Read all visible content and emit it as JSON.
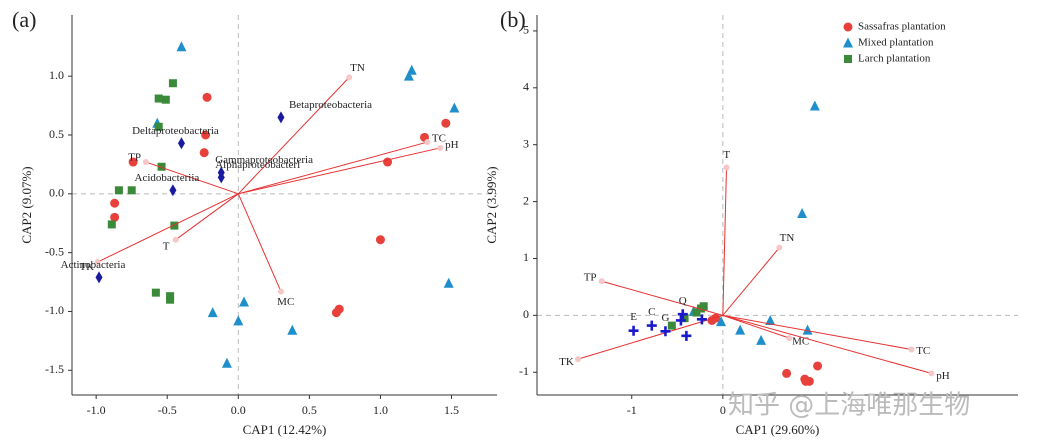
{
  "watermark": "知乎 @上海唯那生物",
  "chart_data": [
    {
      "type": "biplot",
      "panel_label": "(a)",
      "xlabel": "CAP1 (12.42%)",
      "ylabel": "CAP2 (9.07%)",
      "xlim": [
        -1.17,
        1.82
      ],
      "ylim": [
        -1.71,
        1.52
      ],
      "xticks": [
        {
          "value": -1,
          "label": "-1.0"
        },
        -0.5,
        {
          "value": 0,
          "label": "0.0"
        },
        0.5,
        {
          "value": 1,
          "label": "1.0"
        },
        1.5
      ],
      "yticks": [
        -1.5,
        {
          "value": -1,
          "label": "-1.0"
        },
        -0.5,
        {
          "value": 0,
          "label": "0.0"
        },
        0.5,
        {
          "value": 1,
          "label": "1.0"
        }
      ],
      "series": [
        {
          "color": "#e8403a",
          "marker": "circle",
          "x": [
            -0.22,
            -0.23,
            -0.24,
            -0.74,
            -0.87,
            -0.87,
            1.46,
            1.31,
            1.05,
            1.0,
            0.71,
            0.69
          ],
          "y": [
            0.82,
            0.5,
            0.35,
            0.27,
            -0.08,
            -0.2,
            0.6,
            0.48,
            0.27,
            -0.39,
            -0.98,
            -1.01
          ]
        },
        {
          "color": "#1f8fcc",
          "marker": "triangle",
          "x": [
            -0.4,
            -0.57,
            1.22,
            1.2,
            1.52,
            1.48,
            0.04,
            0.38,
            -0.18,
            0.0,
            -0.08
          ],
          "y": [
            1.25,
            0.6,
            1.05,
            1.0,
            0.73,
            -0.76,
            -0.92,
            -1.16,
            -1.01,
            -1.08,
            -1.44
          ]
        },
        {
          "color": "#3a8a3a",
          "marker": "square",
          "x": [
            -0.46,
            -0.56,
            -0.51,
            -0.56,
            -0.54,
            -0.84,
            -0.75,
            -0.89,
            -0.45,
            -0.58,
            -0.48,
            -0.48
          ],
          "y": [
            0.94,
            0.81,
            0.8,
            0.57,
            0.23,
            0.03,
            0.03,
            -0.26,
            -0.27,
            -0.84,
            -0.87,
            -0.9
          ]
        }
      ],
      "vectors": {
        "color": "#e83030",
        "names": [
          "TN",
          "TC",
          "pH",
          "TP",
          "T",
          "TK",
          "MC"
        ],
        "x": [
          0.78,
          1.33,
          1.42,
          -0.65,
          -0.44,
          -0.99,
          0.3
        ],
        "y": [
          0.99,
          0.44,
          0.39,
          0.27,
          -0.39,
          -0.58,
          -0.83
        ]
      },
      "species": {
        "color": "#1a1aa0",
        "marker": "diamond",
        "names": [
          "Betaproteobacteria",
          "Deltaproteobacteria",
          "Gammaproteobacteria",
          "Alphaproteobacteri",
          "Acidobacteriia",
          "Actinobacteria"
        ],
        "x": [
          0.3,
          -0.4,
          -0.12,
          -0.12,
          -0.46,
          -0.98
        ],
        "y": [
          0.65,
          0.43,
          0.18,
          0.14,
          0.03,
          -0.71
        ]
      }
    },
    {
      "type": "biplot",
      "panel_label": "(b)",
      "xlabel": "CAP1 (29.60%)",
      "ylabel": "CAP2 (3.99%)",
      "xlim": [
        -2.04,
        3.24
      ],
      "ylim": [
        -1.4,
        5.28
      ],
      "xticks": [
        -1,
        0
      ],
      "yticks": [
        -1,
        0,
        1,
        2,
        3,
        4,
        5
      ],
      "legend": "upper right",
      "series": [
        {
          "name": "Sassafras plantation",
          "color": "#e8403a",
          "marker": "circle",
          "x": [
            1.04,
            0.7,
            0.9,
            0.95,
            0.91,
            -0.12,
            -0.08
          ],
          "y": [
            -0.89,
            -1.02,
            -1.12,
            -1.16,
            -1.16,
            -0.09,
            -0.05
          ]
        },
        {
          "name": "Mixed plantation",
          "color": "#1f8fcc",
          "marker": "triangle",
          "x": [
            1.01,
            0.87,
            0.52,
            0.19,
            0.93,
            0.42,
            -0.02,
            -0.32
          ],
          "y": [
            3.68,
            1.79,
            -0.09,
            -0.26,
            -0.26,
            -0.44,
            -0.11,
            0.07
          ]
        },
        {
          "name": "Larch plantation",
          "color": "#3a8a3a",
          "marker": "square",
          "x": [
            -0.21,
            -0.24,
            -0.56,
            -0.42,
            -0.29
          ],
          "y": [
            0.16,
            0.12,
            -0.18,
            -0.05,
            0.05
          ]
        }
      ],
      "vectors": {
        "color": "#e83030",
        "names": [
          "T",
          "TN",
          "TP",
          "TK",
          "MC",
          "TC",
          "pH"
        ],
        "x": [
          0.04,
          0.62,
          -1.33,
          -1.59,
          0.73,
          2.07,
          2.29
        ],
        "y": [
          2.6,
          1.19,
          0.6,
          -0.77,
          -0.4,
          -0.6,
          -1.02
        ]
      },
      "sites": {
        "color": "#1a1acc",
        "marker": "plus",
        "labels": [
          "E",
          "C",
          "G",
          "Q",
          null,
          null,
          null
        ],
        "x": [
          -0.98,
          -0.78,
          -0.63,
          -0.44,
          -0.4,
          -0.23,
          -0.46
        ],
        "y": [
          -0.27,
          -0.18,
          -0.28,
          0.02,
          -0.36,
          -0.07,
          -0.09
        ]
      }
    }
  ]
}
